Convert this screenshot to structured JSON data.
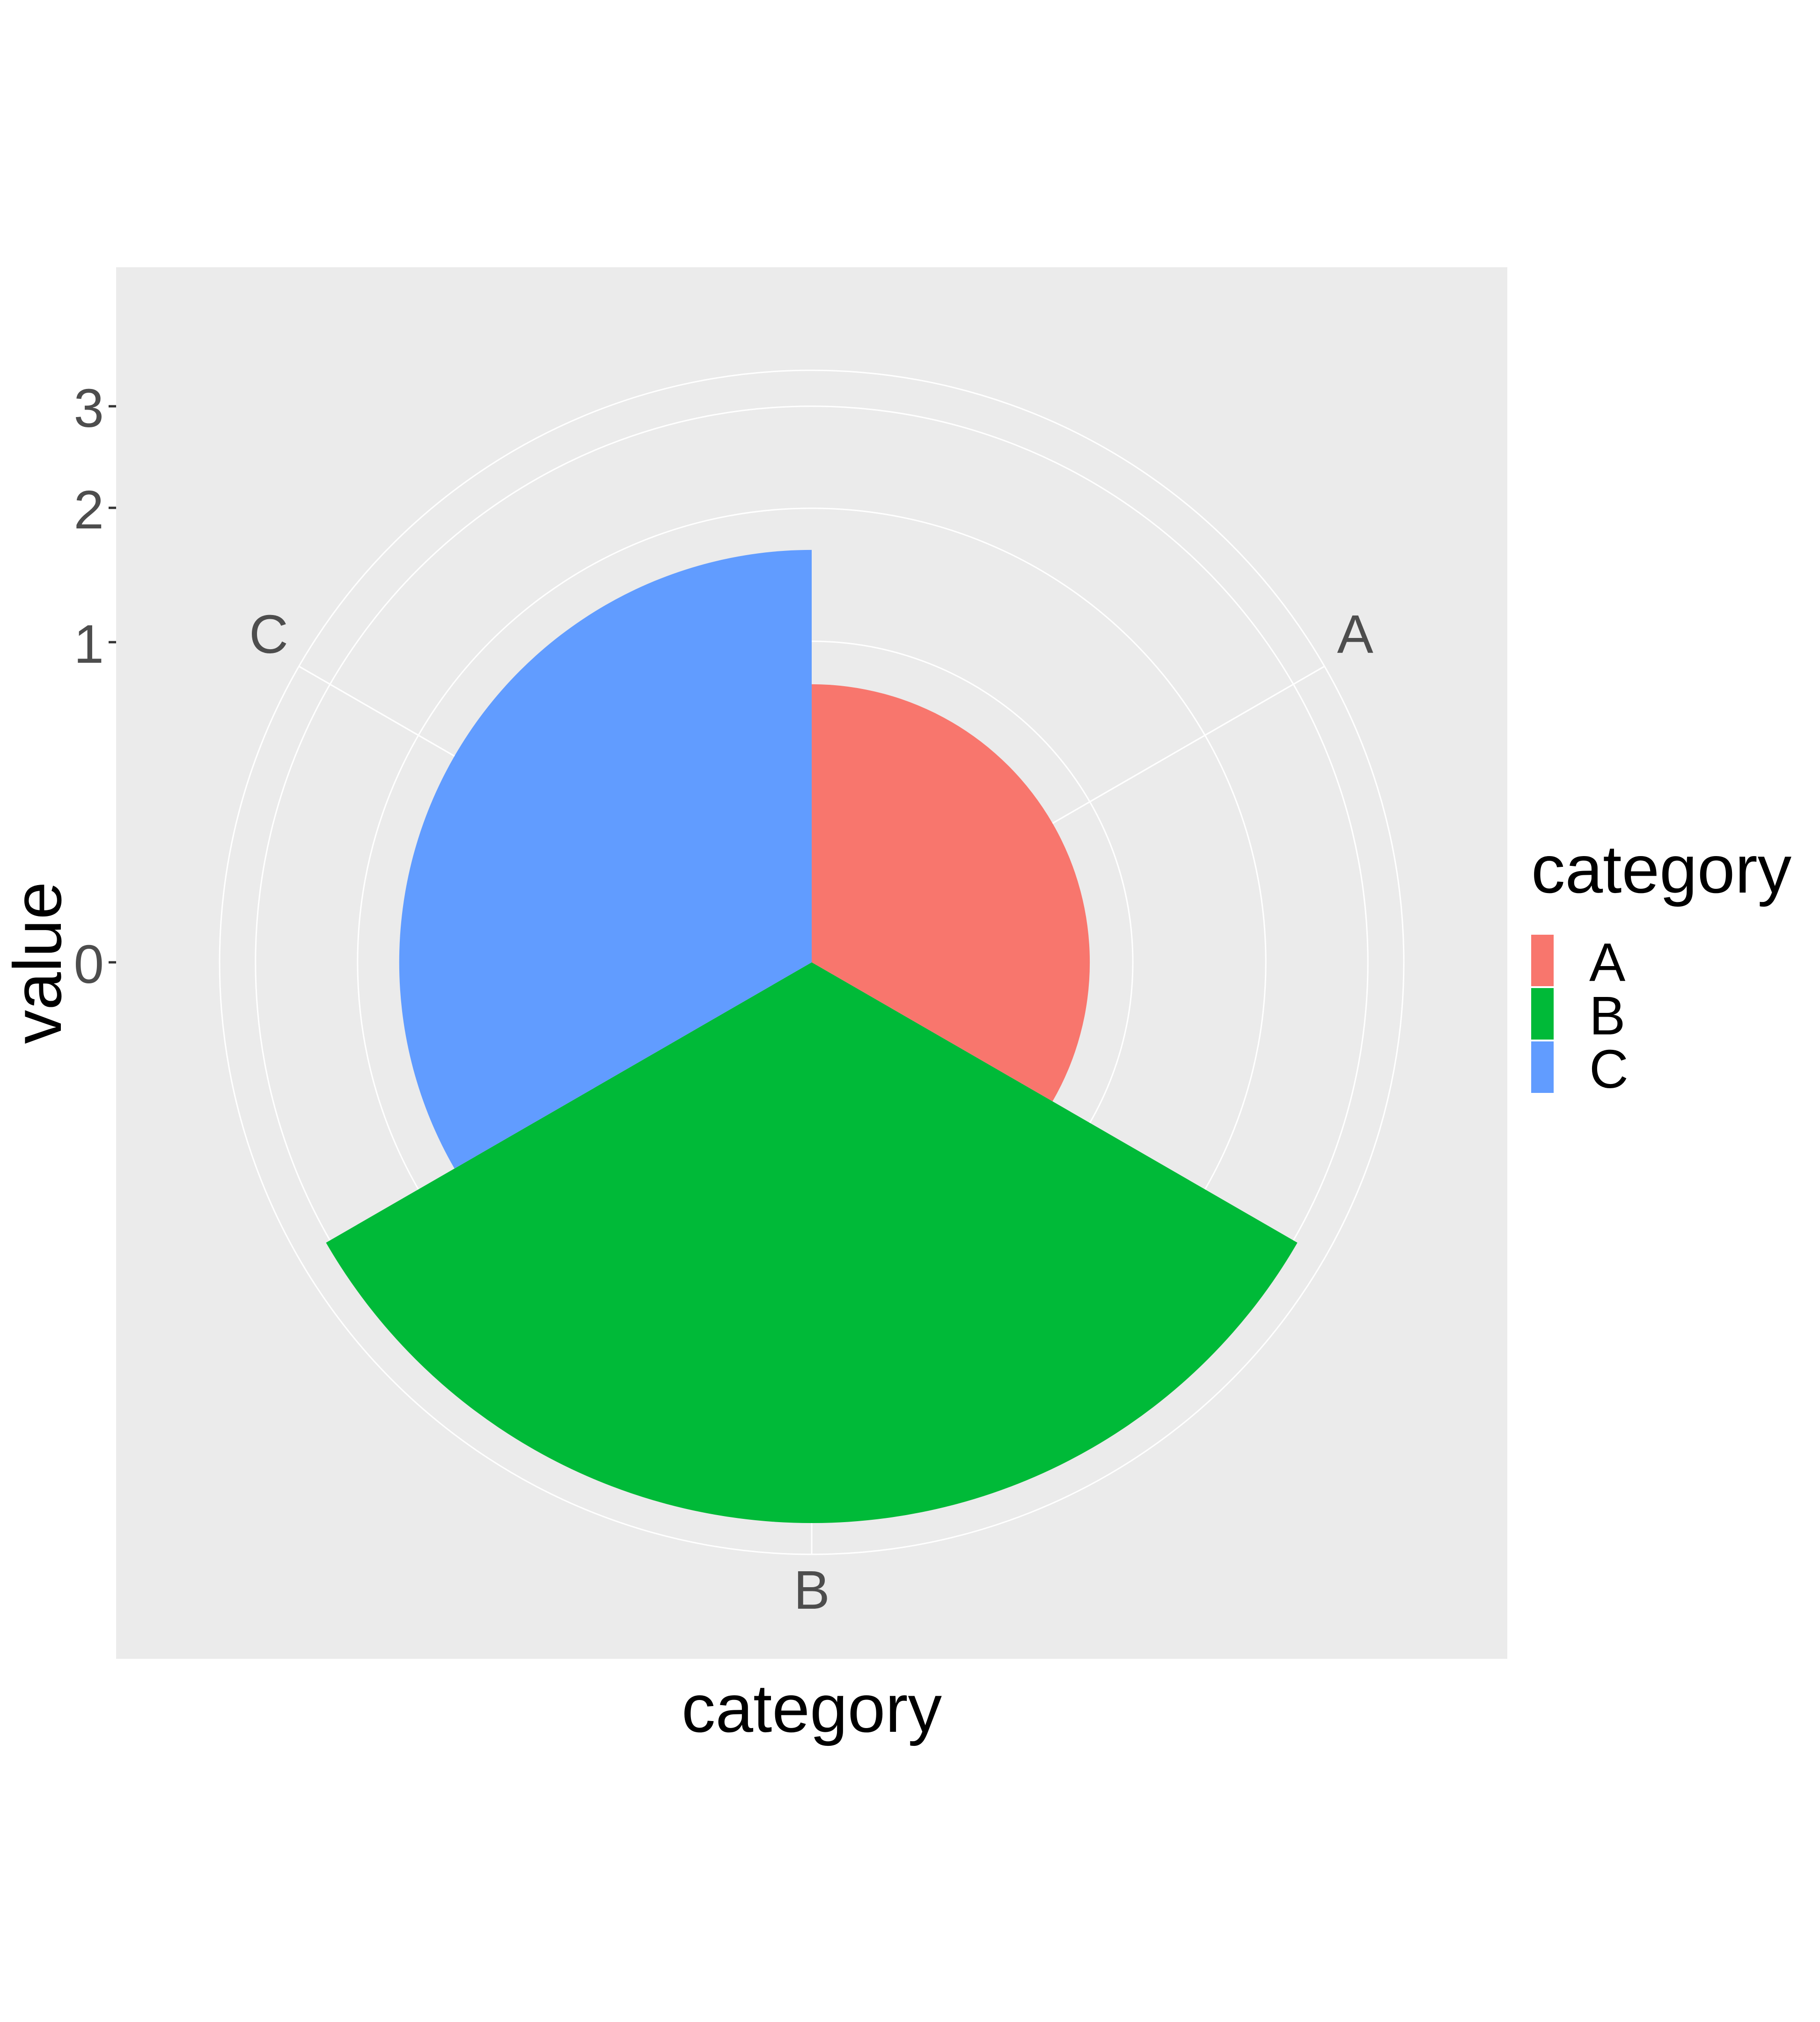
{
  "chart_data": {
    "type": "pie",
    "subtype": "polar-area (coxcomb)",
    "theta_variable": "category",
    "radius_variable": "value",
    "categories": [
      "A",
      "B",
      "C"
    ],
    "values": [
      0.75,
      3.05,
      1.65
    ],
    "colors": {
      "A": "#F8766D",
      "B": "#00BA38",
      "C": "#619CFF"
    },
    "xlabel": "category",
    "ylabel": "value",
    "y_ticks": [
      "0",
      "1",
      "2",
      "3"
    ],
    "y_tick_values": [
      0,
      1,
      2,
      3
    ],
    "radius_range": [
      0,
      3.4
    ],
    "legend": {
      "title": "category",
      "position": "right",
      "entries": [
        "A",
        "B",
        "C"
      ]
    },
    "panel_background": "#EBEBEB",
    "grid": true,
    "grid_color": "#FFFFFF"
  }
}
